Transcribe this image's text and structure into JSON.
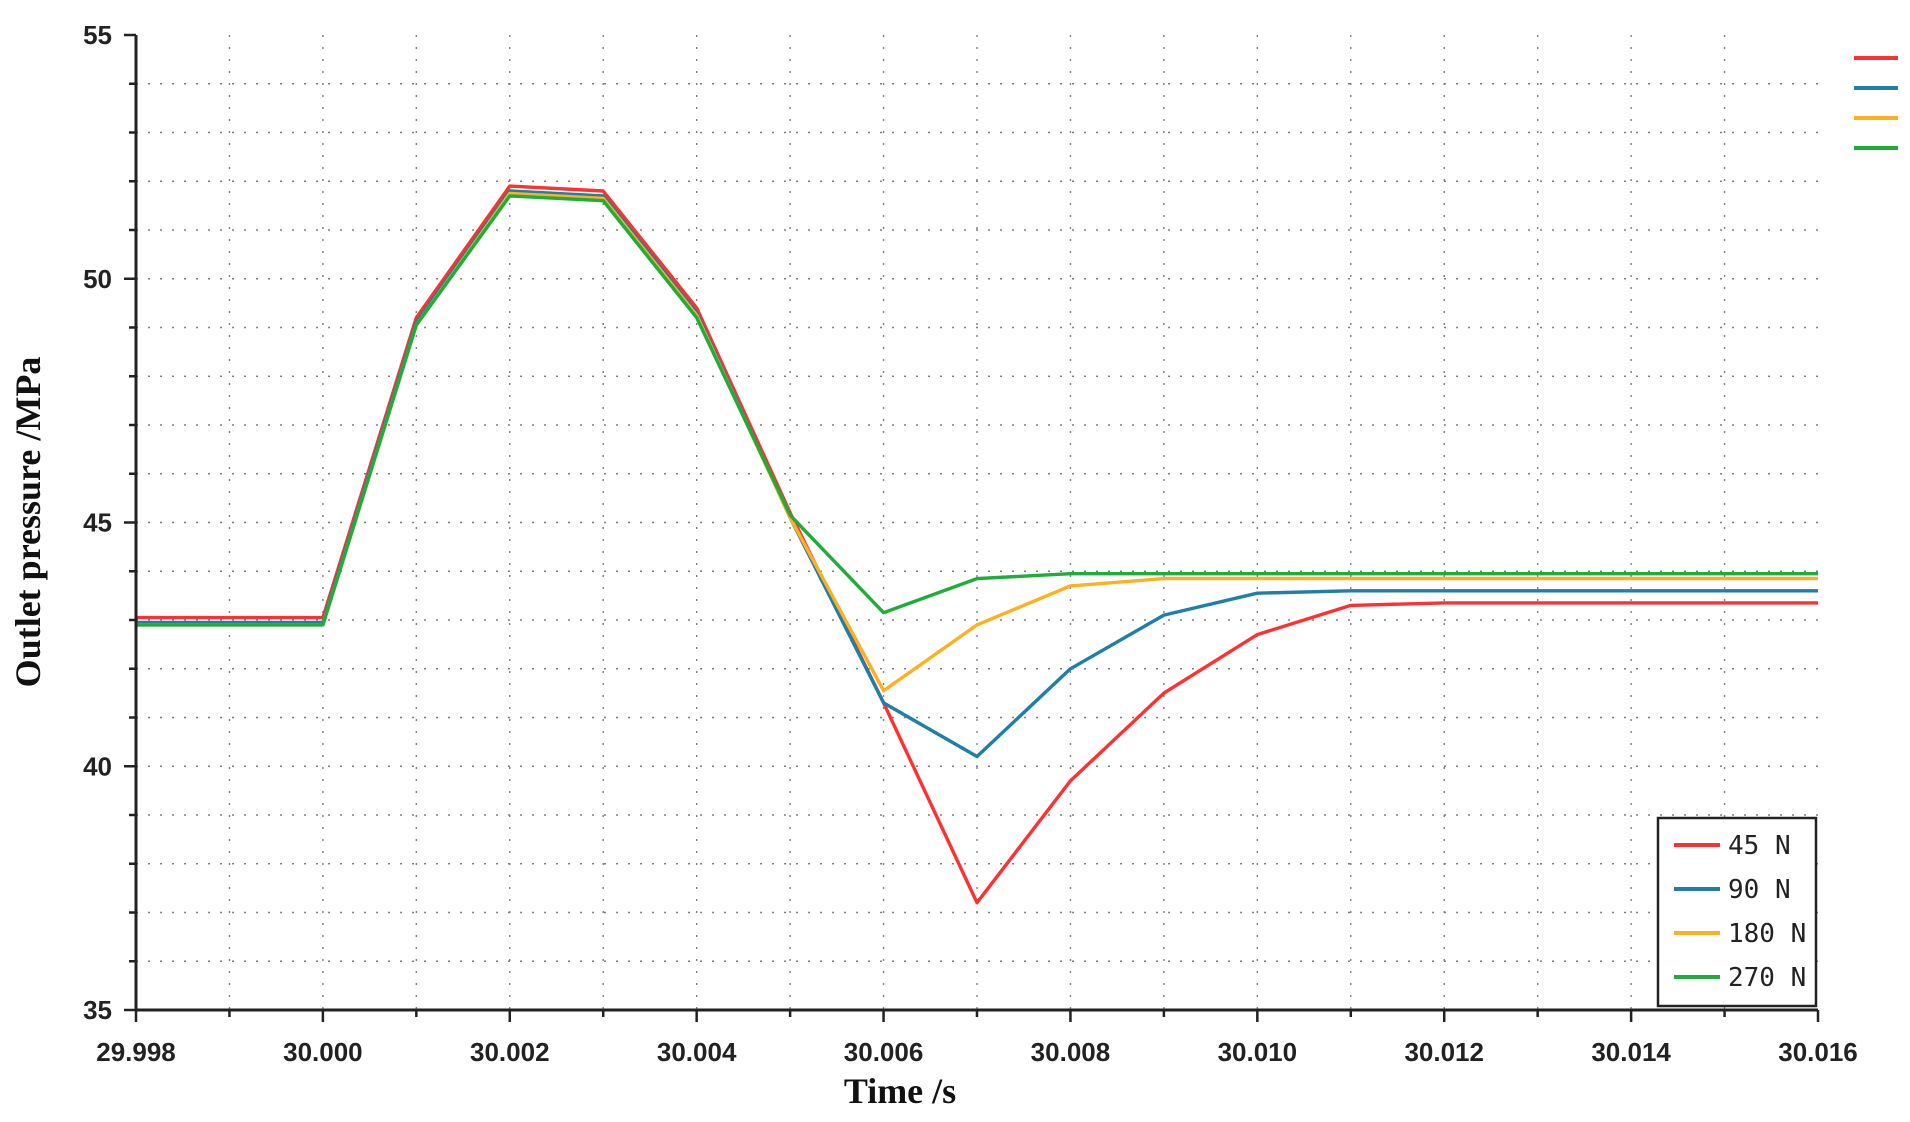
{
  "chart_data": {
    "type": "line",
    "title": "",
    "xlabel": "Time /s",
    "ylabel": "Outlet pressure /MPa",
    "xlim": [
      29.998,
      30.016
    ],
    "ylim": [
      35,
      55
    ],
    "x_ticks": [
      "29.998",
      "30.000",
      "30.002",
      "30.004",
      "30.006",
      "30.008",
      "30.010",
      "30.012",
      "30.014",
      "30.016"
    ],
    "y_ticks": [
      "35",
      "40",
      "45",
      "50",
      "55"
    ],
    "grid": true,
    "legend_position": "bottom-right",
    "series": [
      {
        "name": "45 N",
        "color": "#ff3030",
        "x": [
          29.998,
          30.0,
          30.001,
          30.002,
          30.003,
          30.004,
          30.005,
          30.006,
          30.007,
          30.008,
          30.009,
          30.01,
          30.011,
          30.012,
          30.013,
          30.014,
          30.015,
          30.016
        ],
        "y": [
          43.05,
          43.05,
          49.2,
          51.9,
          51.8,
          49.4,
          45.2,
          41.3,
          37.2,
          39.7,
          41.5,
          42.7,
          43.3,
          43.35,
          43.35,
          43.35,
          43.35,
          43.35
        ]
      },
      {
        "name": "90 N",
        "color": "#1f7fa8",
        "x": [
          29.998,
          30.0,
          30.001,
          30.002,
          30.003,
          30.004,
          30.005,
          30.006,
          30.007,
          30.008,
          30.009,
          30.01,
          30.011,
          30.012,
          30.013,
          30.014,
          30.015,
          30.016
        ],
        "y": [
          42.95,
          42.95,
          49.1,
          51.8,
          51.7,
          49.3,
          45.1,
          41.3,
          40.2,
          42.0,
          43.1,
          43.55,
          43.6,
          43.6,
          43.6,
          43.6,
          43.6,
          43.6
        ]
      },
      {
        "name": "180 N",
        "color": "#ffb020",
        "x": [
          29.998,
          30.0,
          30.001,
          30.002,
          30.003,
          30.004,
          30.005,
          30.006,
          30.007,
          30.008,
          30.009,
          30.01,
          30.011,
          30.012,
          30.013,
          30.014,
          30.015,
          30.016
        ],
        "y": [
          42.9,
          42.9,
          49.05,
          51.75,
          51.65,
          49.25,
          45.1,
          41.55,
          42.9,
          43.7,
          43.85,
          43.85,
          43.85,
          43.85,
          43.85,
          43.85,
          43.85,
          43.85
        ]
      },
      {
        "name": "270 N",
        "color": "#1fad3a",
        "x": [
          29.998,
          30.0,
          30.001,
          30.002,
          30.003,
          30.004,
          30.005,
          30.006,
          30.007,
          30.008,
          30.009,
          30.01,
          30.011,
          30.012,
          30.013,
          30.014,
          30.015,
          30.016
        ],
        "y": [
          42.9,
          42.9,
          49.05,
          51.7,
          51.6,
          49.2,
          45.15,
          43.15,
          43.85,
          43.95,
          43.95,
          43.95,
          43.95,
          43.95,
          43.95,
          43.95,
          43.95,
          43.95
        ]
      }
    ]
  }
}
